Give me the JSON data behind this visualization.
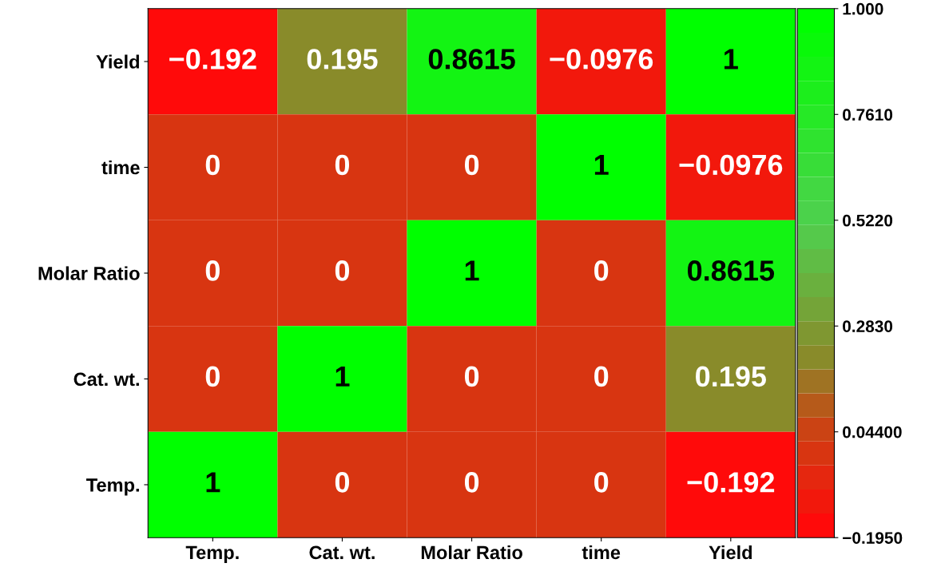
{
  "chart_data": {
    "type": "heatmap",
    "categories": [
      "Temp.",
      "Cat. wt.",
      "Molar Ratio",
      "time",
      "Yield"
    ],
    "y_categories": [
      "Yield",
      "time",
      "Molar Ratio",
      "Cat. wt.",
      "Temp."
    ],
    "cells": [
      [
        -0.192,
        0.195,
        0.8615,
        -0.0976,
        1
      ],
      [
        0,
        0,
        0,
        1,
        -0.0976
      ],
      [
        0,
        0,
        1,
        0,
        0.8615
      ],
      [
        0,
        1,
        0,
        0,
        0.195
      ],
      [
        1,
        0,
        0,
        0,
        -0.192
      ]
    ],
    "cell_labels": [
      [
        "−0.192",
        "0.195",
        "0.8615",
        "−0.0976",
        "1"
      ],
      [
        "0",
        "0",
        "0",
        "1",
        "−0.0976"
      ],
      [
        "0",
        "0",
        "1",
        "0",
        "0.8615"
      ],
      [
        "0",
        "1",
        "0",
        "0",
        "0.195"
      ],
      [
        "1",
        "0",
        "0",
        "0",
        "−0.192"
      ]
    ],
    "clim": [
      -0.195,
      1.0
    ],
    "cticks": [
      {
        "value": 1.0,
        "label": "1.000"
      },
      {
        "value": 0.761,
        "label": "0.7610"
      },
      {
        "value": 0.522,
        "label": "0.5220"
      },
      {
        "value": 0.283,
        "label": "0.2830"
      },
      {
        "value": 0.044,
        "label": "0.04400"
      },
      {
        "value": -0.195,
        "label": "−0.1950"
      }
    ]
  }
}
